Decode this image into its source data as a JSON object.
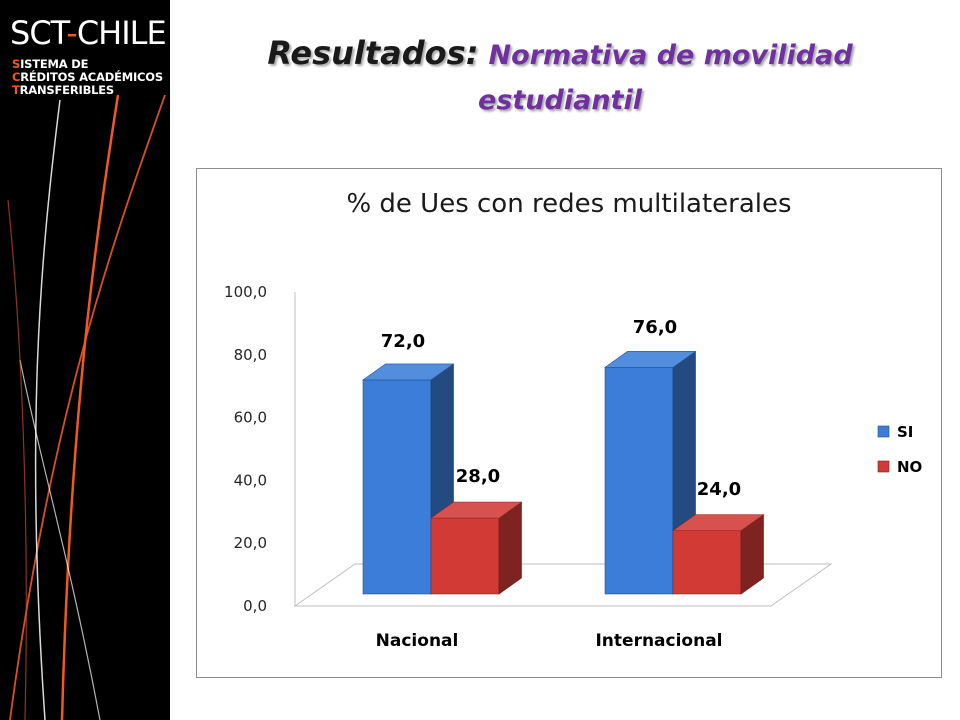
{
  "logo": {
    "main_left": "SCT",
    "main_dash": "-",
    "main_right": "CHILE",
    "lines": [
      {
        "initial": "S",
        "rest": "ISTEMA DE"
      },
      {
        "initial": "C",
        "rest": "RÉDITOS ACADÉMICOS"
      },
      {
        "initial": "T",
        "rest": "RANSFERIBLES"
      }
    ]
  },
  "slide": {
    "title_main": "Resultados:",
    "title_sub_line1": "Normativa de movilidad",
    "title_sub_line2": "estudiantil"
  },
  "colors": {
    "accent_orange": "#f05a22",
    "subtitle_purple": "#7030a0"
  },
  "chart_data": {
    "type": "bar",
    "title": "% de Ues con redes multilaterales",
    "categories": [
      "Nacional",
      "Internacional"
    ],
    "series": [
      {
        "name": "SI",
        "values": [
          72.0,
          76.0
        ],
        "labels": [
          "72,0",
          "76,0"
        ],
        "color": "#3b7dd8"
      },
      {
        "name": "NO",
        "values": [
          28.0,
          24.0
        ],
        "labels": [
          "28,0",
          "24,0"
        ],
        "color": "#d23a36"
      }
    ],
    "ylim": [
      0,
      100
    ],
    "yticks": [
      "0,0",
      "20,0",
      "40,0",
      "60,0",
      "80,0",
      "100,0"
    ],
    "ytick_values": [
      0,
      20,
      40,
      60,
      80,
      100
    ],
    "legend_position": "right",
    "style": "3d-clustered-column",
    "grid": false
  }
}
